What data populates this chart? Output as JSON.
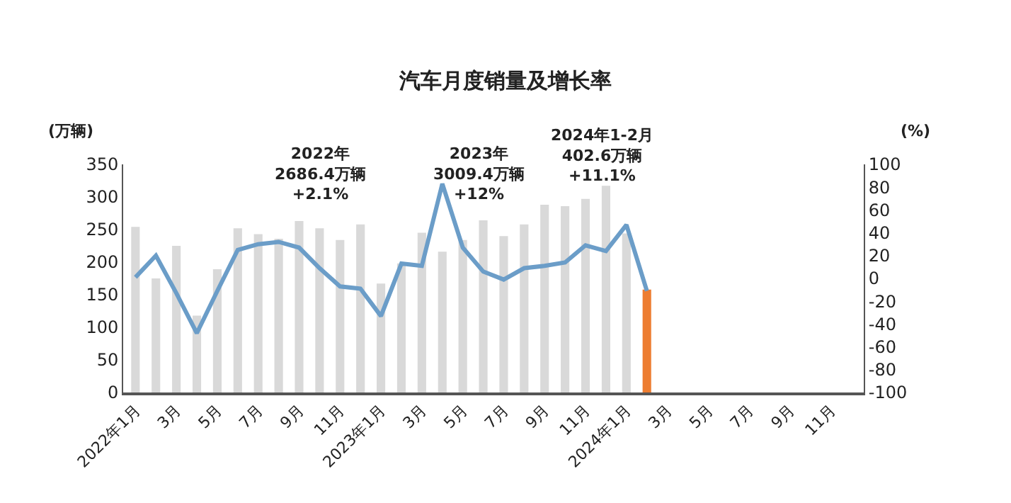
{
  "chart_data": {
    "type": "bar",
    "title": "汽车月度销量及增长率",
    "ylabel": "(万辆)",
    "y2label": "(%)",
    "categories": [
      "2022年1月",
      null,
      "3月",
      null,
      "5月",
      null,
      "7月",
      null,
      "9月",
      null,
      "11月",
      null,
      "2023年1月",
      null,
      "3月",
      null,
      "5月",
      null,
      "7月",
      null,
      "9月",
      null,
      "11月",
      null,
      "2024年1月",
      null,
      "3月",
      null,
      "5月",
      null,
      "7月",
      null,
      "9月",
      null,
      "11月",
      null
    ],
    "series": [
      {
        "values": [
          254,
          175,
          225,
          118,
          189,
          252,
          243,
          236,
          263,
          252,
          234,
          258,
          167,
          198,
          245,
          216,
          234,
          264,
          240,
          258,
          288,
          286,
          297,
          317,
          244,
          158,
          null,
          null,
          null,
          null,
          null,
          null,
          null,
          null,
          null,
          null
        ],
        "colors": [
          "#d9d9d9",
          "#d9d9d9",
          "#d9d9d9",
          "#d9d9d9",
          "#d9d9d9",
          "#d9d9d9",
          "#d9d9d9",
          "#d9d9d9",
          "#d9d9d9",
          "#d9d9d9",
          "#d9d9d9",
          "#d9d9d9",
          "#d9d9d9",
          "#d9d9d9",
          "#d9d9d9",
          "#d9d9d9",
          "#d9d9d9",
          "#d9d9d9",
          "#d9d9d9",
          "#d9d9d9",
          "#d9d9d9",
          "#d9d9d9",
          "#d9d9d9",
          "#d9d9d9",
          "#d9d9d9",
          "#ed7d31",
          "#d9d9d9",
          "#d9d9d9",
          "#d9d9d9",
          "#d9d9d9",
          "#d9d9d9",
          "#d9d9d9",
          "#d9d9d9",
          "#d9d9d9",
          "#d9d9d9",
          "#d9d9d9"
        ]
      },
      {
        "type": "line",
        "axis": "y2",
        "color": "#6b9dc8",
        "values": [
          1,
          20,
          -13,
          -48,
          -11,
          25,
          30,
          32,
          27,
          9,
          -7,
          -9,
          -33,
          13,
          11,
          83,
          27,
          6,
          -1,
          9,
          11,
          14,
          29,
          24,
          47,
          -11,
          null,
          null,
          null,
          null,
          null,
          null,
          null,
          null,
          null,
          null
        ]
      }
    ],
    "ylim": [
      0,
      350
    ],
    "yticks": [
      0,
      50,
      100,
      150,
      200,
      250,
      300,
      350
    ],
    "y2lim": [
      -100,
      100
    ],
    "y2ticks": [
      -100,
      -80,
      -60,
      -40,
      -20,
      0,
      20,
      40,
      60,
      80,
      100
    ],
    "marker": "none",
    "line_style": "solid",
    "annotations": [
      "2022年\n2686.4万辆\n+2.1%",
      "2023年\n3009.4万辆\n+12%",
      "2024年1-2月\n402.6万辆\n+11.1%"
    ]
  }
}
